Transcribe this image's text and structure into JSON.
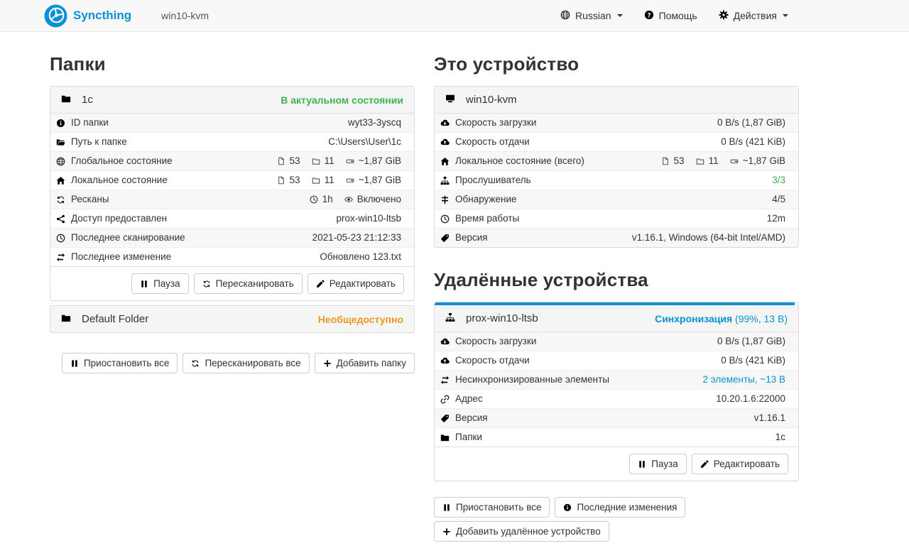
{
  "navbar": {
    "brand": "Syncthing",
    "device_name": "win10-kvm",
    "language": {
      "icon": "globe",
      "label": "Russian"
    },
    "help": {
      "icon": "question",
      "label": "Помощь"
    },
    "actions": {
      "icon": "gear",
      "label": "Действия"
    }
  },
  "colors": {
    "accent": "#0891d1",
    "success": "#3eb34f",
    "warning": "#ec971f"
  },
  "folders": {
    "title": "Папки",
    "expanded": {
      "icon": "folder",
      "name": "1c",
      "status": "В актуальном состоянии",
      "rows": [
        {
          "icon": "info",
          "label": "ID папки",
          "value": [
            {
              "text": "wyt33-3yscq"
            }
          ]
        },
        {
          "icon": "folder-open",
          "label": "Путь к папке",
          "value": [
            {
              "text": "C:\\Users\\User\\1c"
            }
          ]
        },
        {
          "icon": "globe",
          "label": "Глобальное состояние",
          "value": [
            {
              "icon": "file"
            },
            {
              "text": "53"
            },
            {
              "icon": "folder-o"
            },
            {
              "text": "11"
            },
            {
              "icon": "hdd"
            },
            {
              "text": "~1,87 GiB"
            }
          ]
        },
        {
          "icon": "home",
          "label": "Локальное состояние",
          "value": [
            {
              "icon": "file"
            },
            {
              "text": "53"
            },
            {
              "icon": "folder-o"
            },
            {
              "text": "11"
            },
            {
              "icon": "hdd"
            },
            {
              "text": "~1,87 GiB"
            }
          ]
        },
        {
          "icon": "refresh",
          "label": "Ресканы",
          "value": [
            {
              "icon": "clock"
            },
            {
              "text": "1h"
            },
            {
              "icon": "eye"
            },
            {
              "text": "Включено"
            }
          ]
        },
        {
          "icon": "share",
          "label": "Доступ предоставлен",
          "value": [
            {
              "text": "prox-win10-ltsb"
            }
          ]
        },
        {
          "icon": "clock",
          "label": "Последнее сканирование",
          "value": [
            {
              "text": "2021-05-23 21:12:33"
            }
          ]
        },
        {
          "icon": "exchange",
          "label": "Последнее изменение",
          "value": [
            {
              "text": "Обновлено 123.txt"
            }
          ]
        }
      ],
      "buttons": [
        {
          "name": "pause-button",
          "icon": "pause",
          "label": "Пауза"
        },
        {
          "name": "rescan-button",
          "icon": "refresh",
          "label": "Пересканировать"
        },
        {
          "name": "edit-button",
          "icon": "edit",
          "label": "Редактировать"
        }
      ]
    },
    "collapsed": {
      "icon": "folder",
      "name": "Default Folder",
      "status": "Необщедоступно"
    },
    "footer_buttons": [
      {
        "name": "pause-all-folders-button",
        "icon": "pause",
        "label": "Приостановить все"
      },
      {
        "name": "rescan-all-button",
        "icon": "refresh",
        "label": "Пересканировать все"
      },
      {
        "name": "add-folder-button",
        "icon": "plus",
        "label": "Добавить папку"
      }
    ]
  },
  "this_device": {
    "title": "Это устройство",
    "icon": "desktop",
    "name": "win10-kvm",
    "rows": [
      {
        "icon": "cloud-down",
        "label": "Скорость загрузки",
        "value": [
          {
            "text": "0 B/s (1,87 GiB)"
          }
        ]
      },
      {
        "icon": "cloud-up",
        "label": "Скорость отдачи",
        "value": [
          {
            "text": "0 B/s (421 KiB)"
          }
        ]
      },
      {
        "icon": "home",
        "label": "Локальное состояние (всего)",
        "value": [
          {
            "icon": "file"
          },
          {
            "text": "53"
          },
          {
            "icon": "folder-o"
          },
          {
            "text": "11"
          },
          {
            "icon": "hdd"
          },
          {
            "text": "~1,87 GiB"
          }
        ]
      },
      {
        "icon": "sitemap",
        "label": "Прослушиватель",
        "value": [
          {
            "text": "3/3",
            "cls": "green"
          }
        ]
      },
      {
        "icon": "sliders",
        "label": "Обнаружение",
        "value": [
          {
            "text": "4/5"
          }
        ]
      },
      {
        "icon": "clock",
        "label": "Время работы",
        "value": [
          {
            "text": "12m"
          }
        ]
      },
      {
        "icon": "tag",
        "label": "Версия",
        "value": [
          {
            "text": "v1.16.1, Windows (64-bit Intel/AMD)"
          }
        ]
      }
    ]
  },
  "remote_devices": {
    "title": "Удалённые устройства",
    "device": {
      "icon": "sitemap",
      "name": "prox-win10-ltsb",
      "status_bold": "Синхронизация",
      "status_rest": " (99%, 13 B)",
      "progress_percent": 99,
      "rows": [
        {
          "icon": "cloud-down",
          "label": "Скорость загрузки",
          "value": [
            {
              "text": "0 B/s (1,87 GiB)"
            }
          ]
        },
        {
          "icon": "cloud-up",
          "label": "Скорость отдачи",
          "value": [
            {
              "text": "0 B/s (421 KiB)"
            }
          ]
        },
        {
          "icon": "exchange",
          "label": "Несинхронизированные элементы",
          "value": [
            {
              "text": "2 элементы, ~13 B",
              "cls": "link"
            }
          ]
        },
        {
          "icon": "link",
          "label": "Адрес",
          "value": [
            {
              "text": "10.20.1.6:22000"
            }
          ]
        },
        {
          "icon": "tag",
          "label": "Версия",
          "value": [
            {
              "text": "v1.16.1"
            }
          ]
        },
        {
          "icon": "folder",
          "label": "Папки",
          "value": [
            {
              "text": "1c"
            }
          ]
        }
      ],
      "buttons": [
        {
          "name": "pause-device-button",
          "icon": "pause",
          "label": "Пауза"
        },
        {
          "name": "edit-device-button",
          "icon": "edit",
          "label": "Редактировать"
        }
      ]
    },
    "footer_buttons": [
      {
        "name": "pause-all-devices-button",
        "icon": "pause",
        "label": "Приостановить все"
      },
      {
        "name": "recent-changes-button",
        "icon": "info",
        "label": "Последние изменения"
      },
      {
        "name": "add-remote-device-button",
        "icon": "plus",
        "label": "Добавить удалённое устройство"
      }
    ]
  }
}
